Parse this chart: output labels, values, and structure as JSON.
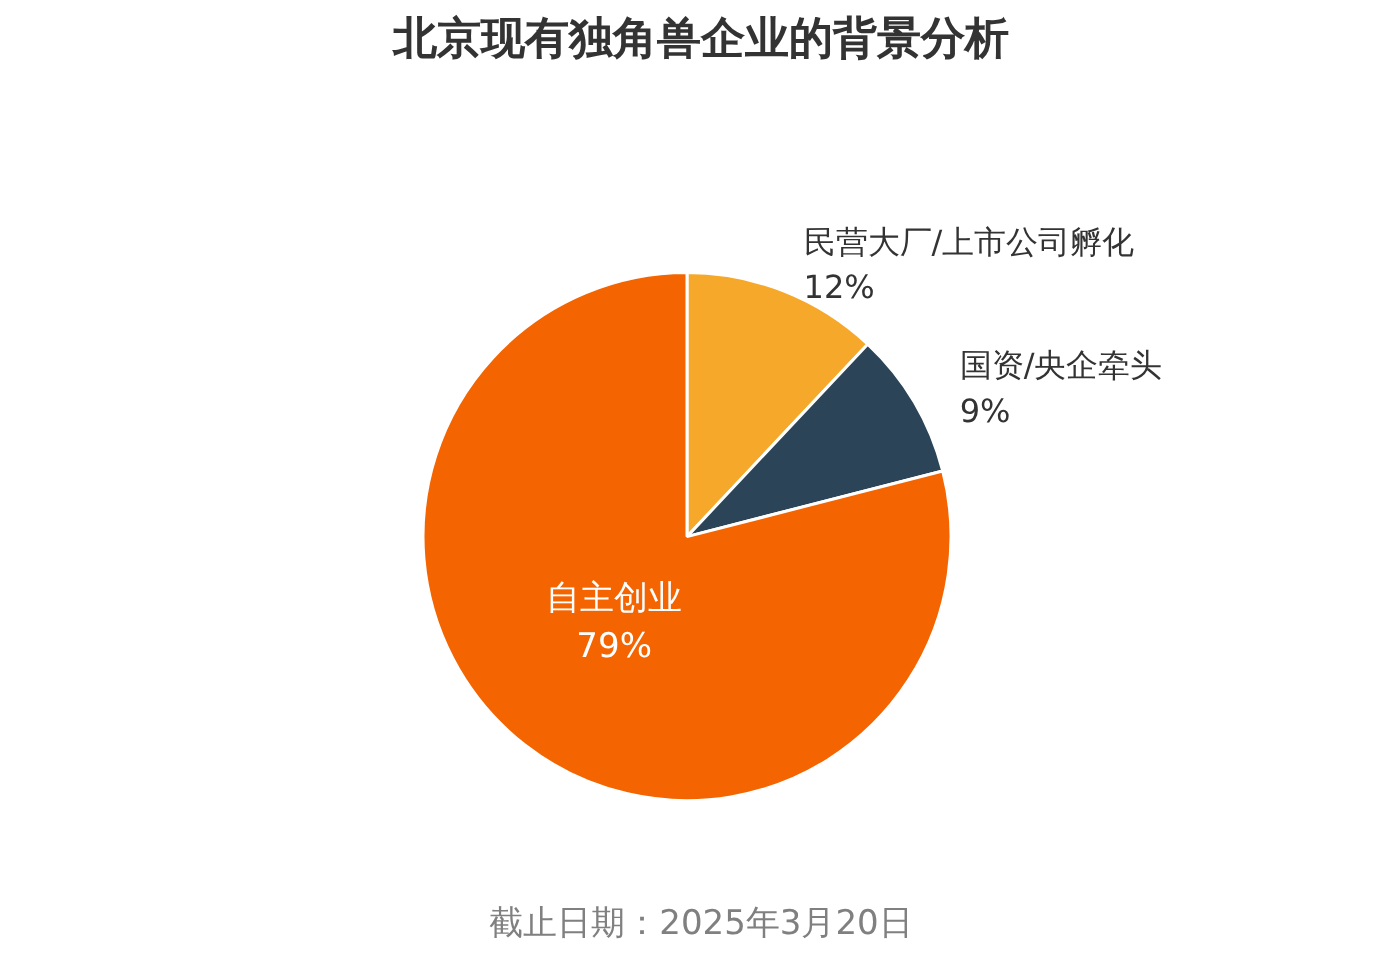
{
  "chart_data": {
    "type": "pie",
    "title": "北京现有独角兽企业的背景分析",
    "categories": [
      "民营大厂/上市公司孵化",
      "国资/央企牵头",
      "自主创业"
    ],
    "values": [
      12,
      9,
      79
    ],
    "value_labels": [
      "12%",
      "9%",
      "79%"
    ],
    "colors": [
      "#f5a82a",
      "#2b4457",
      "#f46400"
    ],
    "annotations": [
      "截止日期：2025年3月20日"
    ]
  }
}
